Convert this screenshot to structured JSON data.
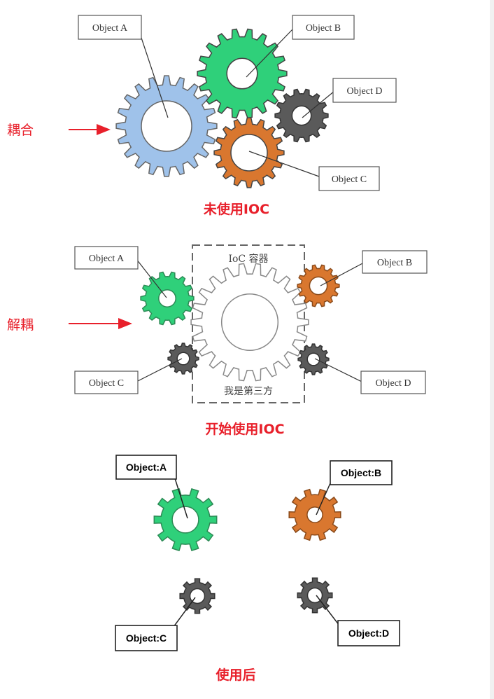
{
  "colors": {
    "blue": "#9fc2ea",
    "green": "#2fd07a",
    "orange": "#d9772f",
    "gray": "#5a5a5a",
    "red": "#e8202b",
    "white_gear": "#ffffff"
  },
  "section1": {
    "side_label": "耦合",
    "caption": "未使用IOC",
    "labels": {
      "a": "Object A",
      "b": "Object B",
      "c": "Object C",
      "d": "Object D"
    }
  },
  "section2": {
    "side_label": "解耦",
    "caption": "开始使用IOC",
    "container_title": "IoC 容器",
    "container_subtitle": "我是第三方",
    "labels": {
      "a": "Object A",
      "b": "Object B",
      "c": "Object C",
      "d": "Object D"
    }
  },
  "section3": {
    "caption": "使用后",
    "labels": {
      "a": "Object:A",
      "b": "Object:B",
      "c": "Object:C",
      "d": "Object:D"
    }
  }
}
